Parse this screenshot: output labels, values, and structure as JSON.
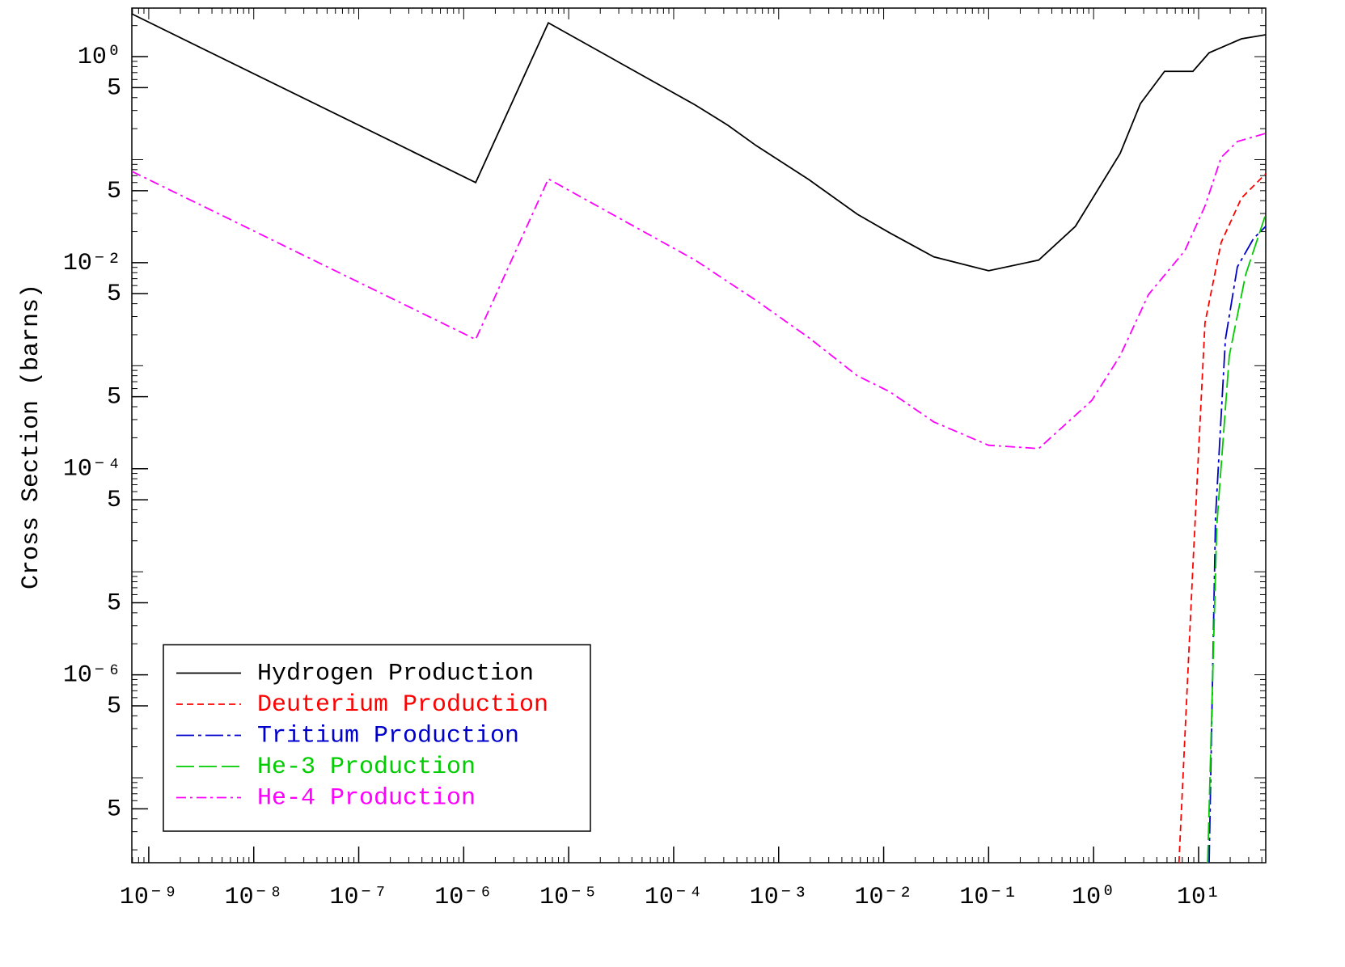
{
  "chart_data": {
    "type": "line",
    "y_label": "Cross Section (barns)",
    "xscale": "log",
    "yscale": "log",
    "xlim": [
      6.9e-10,
      43.6
    ],
    "ylim": [
      1.5e-08,
      2.96
    ],
    "xticks": [
      {
        "value": 1e-09,
        "label": "10⁻⁹"
      },
      {
        "value": 1e-08,
        "label": "10⁻⁸"
      },
      {
        "value": 1e-07,
        "label": "10⁻⁷"
      },
      {
        "value": 1e-06,
        "label": "10⁻⁶"
      },
      {
        "value": 1e-05,
        "label": "10⁻⁵"
      },
      {
        "value": 0.0001,
        "label": "10⁻⁴"
      },
      {
        "value": 0.001,
        "label": "10⁻³"
      },
      {
        "value": 0.01,
        "label": "10⁻²"
      },
      {
        "value": 0.1,
        "label": "10⁻¹"
      },
      {
        "value": 1,
        "label": "10⁰"
      },
      {
        "value": 10,
        "label": "10¹"
      }
    ],
    "yticks": [
      {
        "value": 1,
        "label": "10⁰"
      },
      {
        "value": 0.5,
        "label": "5"
      },
      {
        "value": 0.05,
        "label": "5"
      },
      {
        "value": 0.01,
        "label": "10⁻²"
      },
      {
        "value": 0.005,
        "label": "5"
      },
      {
        "value": 0.0005,
        "label": "5"
      },
      {
        "value": 0.0001,
        "label": "10⁻⁴"
      },
      {
        "value": 5e-05,
        "label": "5"
      },
      {
        "value": 5e-06,
        "label": "5"
      },
      {
        "value": 1e-06,
        "label": "10⁻⁶"
      },
      {
        "value": 5e-07,
        "label": "5"
      },
      {
        "value": 5e-08,
        "label": "5"
      }
    ],
    "legend": "lower left",
    "series": [
      {
        "name": "Hydrogen Production",
        "color": "#000000",
        "dash": "solid",
        "x": [
          6.9e-10,
          1.3e-06,
          6.4e-06,
          0.00016,
          0.00033,
          0.00061,
          0.00194,
          0.0056,
          0.0114,
          0.03,
          0.1,
          0.3,
          0.67,
          1.79,
          2.79,
          4.74,
          8.83,
          12.6,
          25.6,
          43.6
        ],
        "values": [
          2.6,
          0.06,
          2.13,
          0.34,
          0.215,
          0.137,
          0.064,
          0.0296,
          0.0195,
          0.0114,
          0.00835,
          0.0106,
          0.0225,
          0.115,
          0.35,
          0.72,
          0.72,
          1.09,
          1.49,
          1.63
        ]
      },
      {
        "name": "Deuterium Production",
        "color": "#ff0000",
        "dash": "dashed",
        "x": [
          6.5,
          8.83,
          11.5,
          16.4,
          25.6,
          43.6
        ],
        "values": [
          1.5e-08,
          1.15e-05,
          0.0026,
          0.0157,
          0.0424,
          0.073
        ]
      },
      {
        "name": "Tritium Production",
        "color": "#0000cc",
        "dash": "long-dash-dot",
        "x": [
          12.6,
          14.5,
          18,
          23.4,
          33.4,
          43.6
        ],
        "values": [
          1.5e-08,
          3.4e-05,
          0.0018,
          0.0091,
          0.0172,
          0.0225
        ]
      },
      {
        "name": "He-3 Production",
        "color": "#00cc00",
        "dash": "long-dash",
        "x": [
          12.2,
          14.9,
          19.6,
          28,
          43.6
        ],
        "values": [
          1.5e-08,
          2.8e-05,
          0.00125,
          0.0076,
          0.0296
        ]
      },
      {
        "name": "He-4 Production",
        "color": "#ff00ff",
        "dash": "dash-dot",
        "x": [
          6.9e-10,
          1.3e-06,
          6.4e-06,
          0.00016,
          0.00061,
          0.00194,
          0.0056,
          0.0114,
          0.03,
          0.1,
          0.3,
          0.96,
          1.79,
          3.33,
          7.4,
          11.5,
          16.4,
          23.4,
          43.6
        ],
        "values": [
          0.077,
          0.0018,
          0.065,
          0.0106,
          0.0043,
          0.00187,
          0.0008,
          0.00056,
          0.000285,
          0.000169,
          0.000157,
          0.00046,
          0.00125,
          0.0049,
          0.0131,
          0.0354,
          0.105,
          0.15,
          0.18
        ]
      }
    ]
  }
}
